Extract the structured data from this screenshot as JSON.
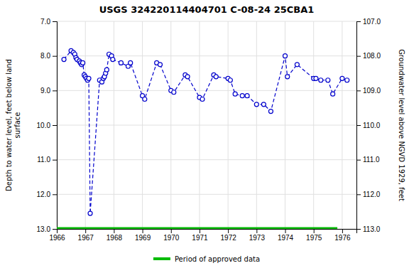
{
  "chart_data": {
    "type": "line",
    "title": "USGS 324220114404701 C-08-24 25CBA1",
    "ylabel": "Depth to water level, feet below land\n surface",
    "y2label": "Groundwater level above NGVD 1929, feet",
    "xlim": [
      1966.0,
      1976.5
    ],
    "xticks": [
      1966,
      1967,
      1968,
      1969,
      1970,
      1971,
      1972,
      1973,
      1974,
      1975,
      1976
    ],
    "ylim": [
      13.0,
      7.0
    ],
    "yticks": [
      {
        "value": 7.0,
        "label": "7.0"
      },
      {
        "value": 8.0,
        "label": "8.0"
      },
      {
        "value": 9.0,
        "label": "9.0"
      },
      {
        "value": 10.0,
        "label": "10.0"
      },
      {
        "value": 11.0,
        "label": "11.0"
      },
      {
        "value": 12.0,
        "label": "12.0"
      },
      {
        "value": 13.0,
        "label": "13.0"
      }
    ],
    "y2lim": [
      113.0,
      107.0
    ],
    "y2ticks": [
      {
        "value": 107.0,
        "label": "107.0"
      },
      {
        "value": 108.0,
        "label": "108.0"
      },
      {
        "value": 109.0,
        "label": "109.0"
      },
      {
        "value": 110.0,
        "label": "110.0"
      },
      {
        "value": 111.0,
        "label": "111.0"
      },
      {
        "value": 112.0,
        "label": "112.0"
      },
      {
        "value": 113.0,
        "label": "113.0"
      }
    ],
    "grid": true,
    "legend": "bottom",
    "series": [
      {
        "color": "#0000cc",
        "marker": "circle",
        "line_style": "dashed",
        "x": [
          1966.25,
          1966.5,
          1966.58,
          1966.63,
          1966.67,
          1966.71,
          1966.79,
          1966.83,
          1966.87,
          1966.91,
          1966.96,
          1967.0,
          1967.04,
          1967.08,
          1967.12,
          1967.17,
          1967.5,
          1967.58,
          1967.63,
          1967.67,
          1967.71,
          1967.75,
          1967.83,
          1967.92,
          1967.96,
          1968.25,
          1968.5,
          1968.58,
          1969.0,
          1969.08,
          1969.5,
          1969.62,
          1970.0,
          1970.1,
          1970.5,
          1970.58,
          1971.0,
          1971.1,
          1971.5,
          1971.58,
          1972.0,
          1972.08,
          1972.25,
          1972.5,
          1972.67,
          1973.0,
          1973.25,
          1973.5,
          1974.0,
          1974.08,
          1974.42,
          1975.0,
          1975.08,
          1975.25,
          1975.5,
          1975.67,
          1976.0,
          1976.17
        ],
        "values": [
          8.1,
          7.85,
          7.9,
          7.95,
          8.05,
          8.1,
          8.15,
          8.2,
          8.25,
          8.2,
          8.55,
          8.6,
          8.65,
          8.7,
          8.65,
          12.55,
          8.7,
          8.75,
          8.65,
          8.6,
          8.5,
          8.4,
          7.95,
          8.0,
          8.1,
          8.2,
          8.3,
          8.2,
          9.15,
          9.25,
          8.2,
          8.25,
          9.0,
          9.05,
          8.55,
          8.6,
          9.2,
          9.25,
          8.55,
          8.6,
          8.65,
          8.7,
          9.1,
          9.15,
          9.15,
          9.4,
          9.4,
          9.6,
          8.0,
          8.6,
          8.25,
          8.65,
          8.65,
          8.7,
          8.7,
          9.1,
          8.65,
          8.7
        ]
      },
      {
        "name": "Period of approved data",
        "color": "#00bb00",
        "line_style": "solid",
        "x": [
          1966.0,
          1975.83
        ],
        "values": [
          13.0,
          13.0
        ]
      }
    ]
  }
}
